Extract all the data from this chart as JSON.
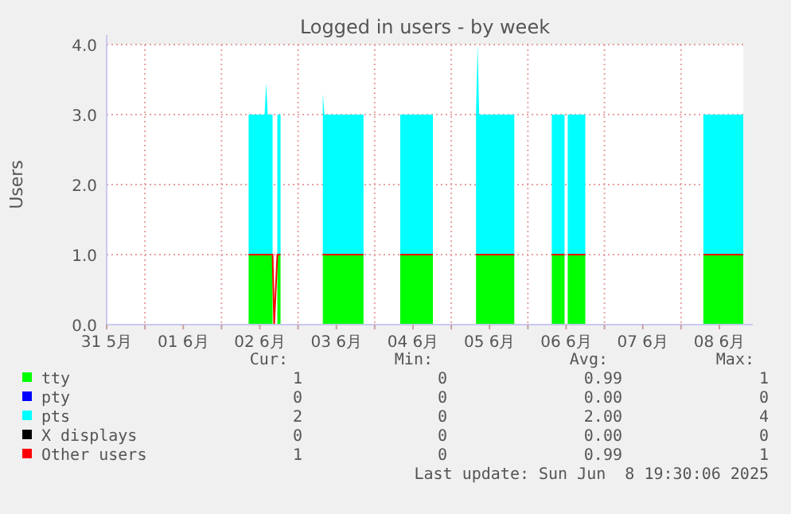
{
  "chart_data": {
    "type": "area",
    "title": "Logged in users - by week",
    "ylabel": "Users",
    "stacked": true,
    "grid": true,
    "legend": "bottom",
    "x": [
      "2025-06-02T08:30",
      "2025-06-02T13:30",
      "2025-06-02T14:00",
      "2025-06-02T14:30",
      "2025-06-02T16:00",
      "2025-06-02T16:30",
      "2025-06-02T17:30",
      "2025-06-02T18:30",
      "2025-06-03T00:00",
      "2025-06-03T07:45",
      "2025-06-03T08:15",
      "2025-06-03T20:30",
      "2025-06-04T00:00",
      "2025-06-04T08:00",
      "2025-06-04T18:15",
      "2025-06-05T00:00",
      "2025-06-05T07:45",
      "2025-06-05T08:15",
      "2025-06-05T08:45",
      "2025-06-05T19:45",
      "2025-06-06T00:00",
      "2025-06-06T07:30",
      "2025-06-06T11:30",
      "2025-06-06T12:00",
      "2025-06-06T12:30",
      "2025-06-06T18:00",
      "2025-06-07T00:00",
      "2025-06-08T07:00",
      "2025-06-08T19:30"
    ],
    "series": [
      {
        "name": "tty",
        "color": "#00ff00",
        "values": [
          1,
          1,
          1,
          1,
          1,
          null,
          1,
          1,
          null,
          1,
          1,
          1,
          null,
          1,
          1,
          null,
          1,
          1,
          1,
          1,
          null,
          1,
          1,
          null,
          1,
          1,
          null,
          1,
          1
        ]
      },
      {
        "name": "pty",
        "color": "#0000ff",
        "values": [
          null,
          null,
          null,
          null,
          null,
          null,
          null,
          null,
          null,
          null,
          null,
          null,
          null,
          null,
          null,
          null,
          null,
          null,
          null,
          null,
          null,
          null,
          null,
          null,
          null,
          null,
          null,
          null,
          null
        ]
      },
      {
        "name": "pts",
        "color": "#00ffff",
        "values": [
          2,
          2,
          2.45,
          2,
          2,
          null,
          2,
          2,
          null,
          2.3,
          2,
          2,
          null,
          2,
          2,
          null,
          2,
          3,
          2,
          2,
          null,
          2,
          2,
          null,
          2,
          2,
          null,
          2,
          2
        ]
      },
      {
        "name": "X displays",
        "color": "#000000",
        "values": [
          null,
          null,
          null,
          null,
          null,
          null,
          null,
          null,
          null,
          null,
          null,
          null,
          null,
          null,
          null,
          null,
          null,
          null,
          null,
          null,
          null,
          null,
          null,
          null,
          null,
          null,
          null,
          null,
          null
        ]
      },
      {
        "name": "Other users",
        "color": "#ff0000",
        "type": "line",
        "values": [
          1,
          1,
          1,
          1,
          1,
          0,
          1,
          1,
          null,
          1,
          1,
          1,
          null,
          1,
          1,
          null,
          1,
          1,
          1,
          1,
          null,
          1,
          1,
          null,
          1,
          1,
          null,
          1,
          1
        ]
      }
    ],
    "xlim": [
      "2025-05-31T12:00",
      "2025-06-08T19:30"
    ],
    "xticks": [
      {
        "value": "2025-05-31T12:00",
        "label": "31 5月"
      },
      {
        "value": "2025-06-01T00:00",
        "label": null
      },
      {
        "value": "2025-06-01T12:00",
        "label": "01 6月"
      },
      {
        "value": "2025-06-02T00:00",
        "label": null
      },
      {
        "value": "2025-06-02T12:00",
        "label": "02 6月"
      },
      {
        "value": "2025-06-03T00:00",
        "label": null
      },
      {
        "value": "2025-06-03T12:00",
        "label": "03 6月"
      },
      {
        "value": "2025-06-04T00:00",
        "label": null
      },
      {
        "value": "2025-06-04T12:00",
        "label": "04 6月"
      },
      {
        "value": "2025-06-05T00:00",
        "label": null
      },
      {
        "value": "2025-06-05T12:00",
        "label": "05 6月"
      },
      {
        "value": "2025-06-06T00:00",
        "label": null
      },
      {
        "value": "2025-06-06T12:00",
        "label": "06 6月"
      },
      {
        "value": "2025-06-07T00:00",
        "label": null
      },
      {
        "value": "2025-06-07T12:00",
        "label": "07 6月"
      },
      {
        "value": "2025-06-08T00:00",
        "label": null
      },
      {
        "value": "2025-06-08T12:00",
        "label": "08 6月"
      }
    ],
    "ylim": [
      0,
      4
    ],
    "yticks": [
      {
        "value": 0,
        "label": "0.0"
      },
      {
        "value": 1,
        "label": "1.0"
      },
      {
        "value": 2,
        "label": "2.0"
      },
      {
        "value": 3,
        "label": "3.0"
      },
      {
        "value": 4,
        "label": "4.0"
      }
    ],
    "annotations": [
      "Cur:",
      "Min:",
      "Avg:",
      "Max:",
      "1",
      "0",
      "0.99",
      "1",
      "0",
      "0",
      "0.00",
      "0",
      "2",
      "0",
      "2.00",
      "4",
      "0",
      "0",
      "0.00",
      "0",
      "1",
      "0",
      "0.99",
      "1",
      "Last update: Sun Jun  8 19:30:06 2025"
    ]
  }
}
